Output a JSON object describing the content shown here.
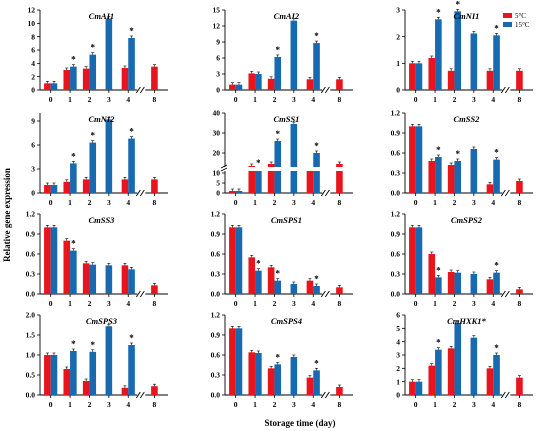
{
  "figure": {
    "ylabel": "Relative gene expression",
    "xlabel": "Storage time (day)",
    "legend": [
      "5°C",
      "15°C"
    ],
    "colors": {
      "5C": "#e8141e",
      "15C": "#1769b0"
    }
  },
  "chart_data": [
    {
      "type": "bar",
      "title": "CmAI1",
      "categories": [
        "0",
        "1",
        "2",
        "3",
        "4",
        "8"
      ],
      "ylim": [
        0,
        12
      ],
      "yticks": [
        0,
        2,
        4,
        6,
        8,
        10,
        12
      ],
      "series": [
        {
          "name": "5°C",
          "values": [
            1,
            3.0,
            3.2,
            null,
            3.3,
            3.5
          ]
        },
        {
          "name": "15°C",
          "values": [
            1,
            3.5,
            5.3,
            10.7,
            7.8,
            null
          ]
        }
      ],
      "stars_15C": [
        1,
        2,
        4
      ]
    },
    {
      "type": "bar",
      "title": "CmAI2",
      "categories": [
        "0",
        "1",
        "2",
        "3",
        "4",
        "8"
      ],
      "ylim": [
        0,
        15
      ],
      "yticks": [
        0,
        3,
        6,
        9,
        12,
        15
      ],
      "series": [
        {
          "name": "5°C",
          "values": [
            1,
            3.1,
            2.1,
            null,
            2.0,
            2.0
          ]
        },
        {
          "name": "15°C",
          "values": [
            1,
            3.0,
            6.2,
            13.0,
            8.8,
            null
          ]
        }
      ],
      "stars_15C": [
        2,
        4
      ]
    },
    {
      "type": "bar",
      "title": "CmNI1",
      "categories": [
        "0",
        "1",
        "2",
        "3",
        "4",
        "8"
      ],
      "ylim": [
        0,
        3
      ],
      "yticks": [
        0,
        1,
        2,
        3
      ],
      "series": [
        {
          "name": "5°C",
          "values": [
            1,
            1.2,
            0.72,
            null,
            0.72,
            0.72
          ]
        },
        {
          "name": "15°C",
          "values": [
            1,
            2.65,
            2.95,
            2.12,
            2.05,
            null
          ]
        }
      ],
      "stars_15C": [
        1,
        2,
        4
      ],
      "legend": true
    },
    {
      "type": "bar",
      "title": "CmNI2",
      "categories": [
        "0",
        "1",
        "2",
        "3",
        "4",
        "8"
      ],
      "ylim": [
        0,
        10
      ],
      "yticks": [
        0,
        3,
        6,
        9
      ],
      "series": [
        {
          "name": "5°C",
          "values": [
            1,
            1.4,
            1.7,
            null,
            1.7,
            1.7
          ]
        },
        {
          "name": "15°C",
          "values": [
            1,
            3.7,
            6.3,
            9.2,
            6.8,
            null
          ]
        }
      ],
      "stars_15C": [
        1,
        2,
        4
      ]
    },
    {
      "type": "bar",
      "title": "CmSS1",
      "categories": [
        "0",
        "1",
        "2",
        "3",
        "4",
        "8"
      ],
      "ylim": [
        0,
        40
      ],
      "yticks": [
        0,
        5,
        10,
        20,
        30,
        40
      ],
      "broken": true,
      "series": [
        {
          "name": "5°C",
          "values": [
            1,
            13.5,
            14.5,
            null,
            11.0,
            14.5
          ]
        },
        {
          "name": "15°C",
          "values": [
            1,
            11.5,
            26.0,
            34.5,
            20.0,
            null
          ]
        }
      ],
      "stars_15C": [
        1,
        2,
        4
      ]
    },
    {
      "type": "bar",
      "title": "CmSS2",
      "categories": [
        "0",
        "1",
        "2",
        "3",
        "4",
        "8"
      ],
      "ylim": [
        0,
        1.2
      ],
      "yticks": [
        0.0,
        0.3,
        0.6,
        0.9,
        1.2
      ],
      "series": [
        {
          "name": "5°C",
          "values": [
            1.0,
            0.48,
            0.42,
            null,
            0.13,
            0.18
          ]
        },
        {
          "name": "15°C",
          "values": [
            1.0,
            0.54,
            0.48,
            0.66,
            0.5,
            null
          ]
        }
      ],
      "stars_15C": [
        1,
        2,
        4
      ]
    },
    {
      "type": "bar",
      "title": "CmSS3",
      "categories": [
        "0",
        "1",
        "2",
        "3",
        "4",
        "8"
      ],
      "ylim": [
        0,
        1.2
      ],
      "yticks": [
        0.0,
        0.3,
        0.6,
        0.9,
        1.2
      ],
      "series": [
        {
          "name": "5°C",
          "values": [
            1.0,
            0.8,
            0.46,
            null,
            0.43,
            0.13
          ]
        },
        {
          "name": "15°C",
          "values": [
            1.0,
            0.65,
            0.44,
            0.43,
            0.37,
            null
          ]
        }
      ],
      "stars_15C": [
        1
      ]
    },
    {
      "type": "bar",
      "title": "CmSPS1",
      "categories": [
        "0",
        "1",
        "2",
        "3",
        "4",
        "8"
      ],
      "ylim": [
        0,
        1.2
      ],
      "yticks": [
        0.0,
        0.3,
        0.6,
        0.9,
        1.2
      ],
      "series": [
        {
          "name": "5°C",
          "values": [
            1.0,
            0.55,
            0.4,
            null,
            0.2,
            0.1
          ]
        },
        {
          "name": "15°C",
          "values": [
            1.0,
            0.35,
            0.2,
            0.15,
            0.12,
            null
          ]
        }
      ],
      "stars_15C": [
        1,
        2,
        4
      ]
    },
    {
      "type": "bar",
      "title": "CmSPS2",
      "categories": [
        "0",
        "1",
        "2",
        "3",
        "4",
        "8"
      ],
      "ylim": [
        0,
        1.2
      ],
      "yticks": [
        0.0,
        0.3,
        0.6,
        0.9,
        1.2
      ],
      "series": [
        {
          "name": "5°C",
          "values": [
            1.0,
            0.6,
            0.33,
            null,
            0.22,
            0.07
          ]
        },
        {
          "name": "15°C",
          "values": [
            1.0,
            0.25,
            0.32,
            0.3,
            0.32,
            null
          ]
        }
      ],
      "stars_15C": [
        1,
        4
      ]
    },
    {
      "type": "bar",
      "title": "CmSPS3",
      "categories": [
        "0",
        "1",
        "2",
        "3",
        "4",
        "8"
      ],
      "ylim": [
        0,
        2.0
      ],
      "yticks": [
        0.0,
        0.5,
        1.0,
        1.5,
        2.0
      ],
      "series": [
        {
          "name": "5°C",
          "values": [
            1.0,
            0.65,
            0.35,
            null,
            0.18,
            0.22
          ]
        },
        {
          "name": "15°C",
          "values": [
            1.0,
            1.1,
            1.08,
            1.72,
            1.25,
            null
          ]
        }
      ],
      "stars_15C": [
        1,
        2,
        4
      ]
    },
    {
      "type": "bar",
      "title": "CmSPS4",
      "categories": [
        "0",
        "1",
        "2",
        "3",
        "4",
        "8"
      ],
      "ylim": [
        0,
        1.2
      ],
      "yticks": [
        0.0,
        0.3,
        0.6,
        0.9,
        1.2
      ],
      "series": [
        {
          "name": "5°C",
          "values": [
            1.0,
            0.64,
            0.4,
            null,
            0.26,
            0.12
          ]
        },
        {
          "name": "15°C",
          "values": [
            1.0,
            0.63,
            0.46,
            0.57,
            0.37,
            null
          ]
        }
      ],
      "stars_15C": [
        2,
        4
      ]
    },
    {
      "type": "bar",
      "title": "CmHXK1*",
      "categories": [
        "0",
        "1",
        "2",
        "3",
        "4",
        "8"
      ],
      "ylim": [
        0,
        6
      ],
      "yticks": [
        0,
        1,
        2,
        3,
        4,
        5,
        6
      ],
      "series": [
        {
          "name": "5°C",
          "values": [
            1,
            2.2,
            3.5,
            null,
            2.0,
            1.3
          ]
        },
        {
          "name": "15°C",
          "values": [
            1,
            3.4,
            5.4,
            4.3,
            3.0,
            null
          ]
        }
      ],
      "stars_15C": [
        1,
        4
      ]
    }
  ]
}
